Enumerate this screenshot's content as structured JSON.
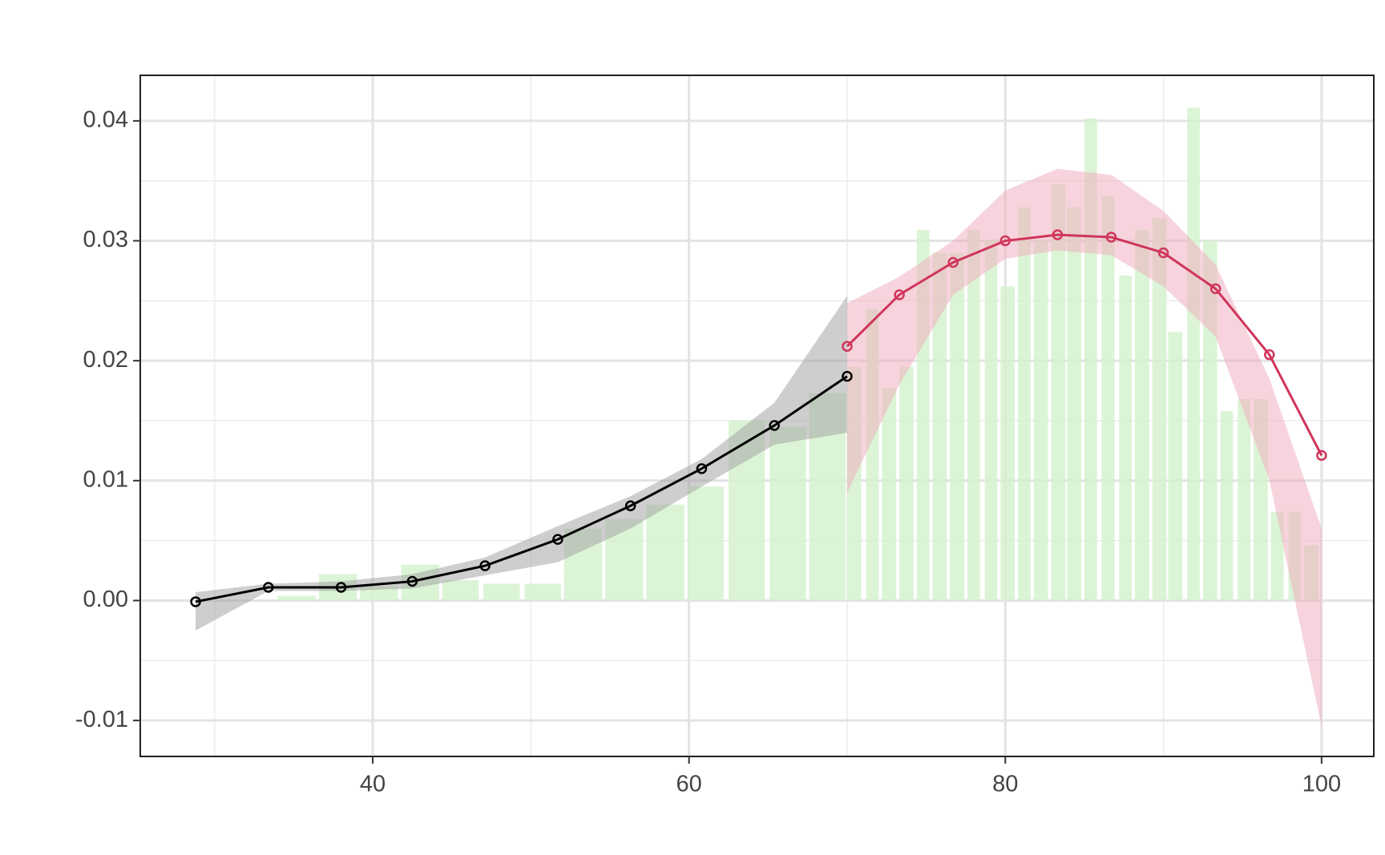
{
  "chart_data": {
    "type": "line",
    "xlim": [
      25.3,
      103.3
    ],
    "ylim": [
      -0.013,
      0.0438
    ],
    "xticks": [
      40,
      60,
      80,
      100
    ],
    "yticks": [
      {
        "value": -0.01,
        "label": "-0.01"
      },
      {
        "value": 0,
        "label": "0.00"
      },
      0.01,
      0.02,
      0.03,
      0.04
    ],
    "minor_xticks": [
      30,
      50,
      70,
      90
    ],
    "minor_yticks": [
      -0.005,
      0.005,
      0.015,
      0.025,
      0.035
    ],
    "grid": true,
    "bars": {
      "color": "#d6f2cf",
      "left": [
        34.0,
        36.6,
        39.2,
        41.8,
        44.4,
        47.0,
        49.6,
        52.1,
        54.7,
        57.3,
        59.9,
        62.5,
        65.1,
        67.6,
        70.0,
        71.2,
        72.2,
        73.3,
        74.4,
        75.4,
        76.5,
        77.6,
        78.7,
        79.7,
        80.8,
        81.8,
        82.9,
        83.9,
        85.0,
        86.1,
        87.2,
        88.2,
        89.3,
        90.3,
        91.5,
        92.5,
        93.6,
        94.7,
        95.7,
        96.8,
        97.9,
        98.9
      ],
      "right": [
        36.4,
        39.0,
        41.6,
        44.2,
        46.7,
        49.3,
        51.9,
        54.5,
        57.1,
        59.7,
        62.2,
        64.8,
        67.4,
        69.9,
        70.9,
        72.0,
        73.1,
        74.2,
        75.2,
        76.3,
        77.4,
        78.4,
        79.5,
        80.6,
        81.6,
        82.7,
        83.8,
        84.8,
        85.8,
        86.9,
        88.0,
        89.1,
        90.2,
        91.2,
        92.3,
        93.4,
        94.4,
        95.5,
        96.6,
        97.6,
        98.7,
        99.8
      ],
      "values": [
        0.0004,
        0.0022,
        0.0012,
        0.003,
        0.0017,
        0.0014,
        0.0014,
        0.006,
        0.0068,
        0.008,
        0.0095,
        0.015,
        0.0145,
        0.0173,
        0.0195,
        0.0243,
        0.0177,
        0.0195,
        0.0309,
        0.029,
        0.029,
        0.0309,
        0.03,
        0.0262,
        0.0328,
        0.03,
        0.0347,
        0.0328,
        0.0402,
        0.0337,
        0.0271,
        0.0309,
        0.0319,
        0.0224,
        0.0411,
        0.03,
        0.0158,
        0.0168,
        0.0168,
        0.0074,
        0.0074,
        0.0046
      ]
    },
    "series": [
      {
        "color": "#000000",
        "band_color": "#9e9e9e",
        "x": [
          28.8,
          33.4,
          38.0,
          42.5,
          47.1,
          51.7,
          56.3,
          60.8,
          65.4,
          70.0
        ],
        "values": [
          -0.0001,
          0.0011,
          0.0011,
          0.0016,
          0.0029,
          0.0051,
          0.0079,
          0.011,
          0.0146,
          0.0187
        ],
        "lower": [
          -0.0025,
          0.0008,
          0.0008,
          0.001,
          0.0021,
          0.0032,
          0.006,
          0.0095,
          0.013,
          0.014
        ],
        "upper": [
          0.0007,
          0.0014,
          0.0016,
          0.0022,
          0.0036,
          0.0062,
          0.0087,
          0.0118,
          0.0165,
          0.0254
        ]
      },
      {
        "color": "#d0355a",
        "band_color": "#f0a9bc",
        "x": [
          70.0,
          73.3,
          76.7,
          80.0,
          83.3,
          86.7,
          90.0,
          93.3,
          96.7,
          100.0
        ],
        "values": [
          0.0212,
          0.0255,
          0.0282,
          0.03,
          0.0305,
          0.0303,
          0.029,
          0.026,
          0.0205,
          0.0121
        ],
        "lower": [
          0.009,
          0.018,
          0.0255,
          0.0285,
          0.0292,
          0.0288,
          0.0262,
          0.022,
          0.01,
          -0.0105
        ],
        "upper": [
          0.0248,
          0.027,
          0.03,
          0.0342,
          0.036,
          0.0355,
          0.0325,
          0.028,
          0.0185,
          0.006
        ]
      }
    ]
  }
}
